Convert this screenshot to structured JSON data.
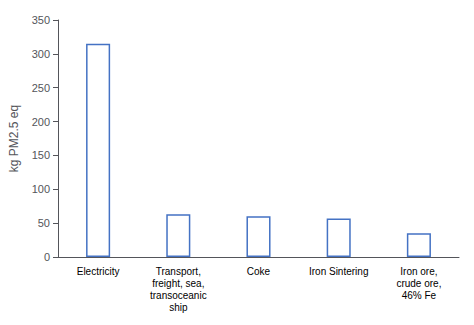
{
  "chart_data": {
    "type": "bar",
    "categories": [
      "Electricity",
      "Transport,\nfreight, sea,\ntransoceanic\nship",
      "Coke",
      "Iron Sintering",
      "Iron ore,\ncrude ore,\n46% Fe"
    ],
    "values": [
      315,
      63,
      60,
      57,
      35
    ],
    "color": "#4472C4",
    "ylabel": "kg PM2.5 eq",
    "ylim": [
      0,
      350
    ],
    "yticks": [
      0,
      50,
      100,
      150,
      200,
      250,
      300,
      350
    ],
    "grid": false
  }
}
